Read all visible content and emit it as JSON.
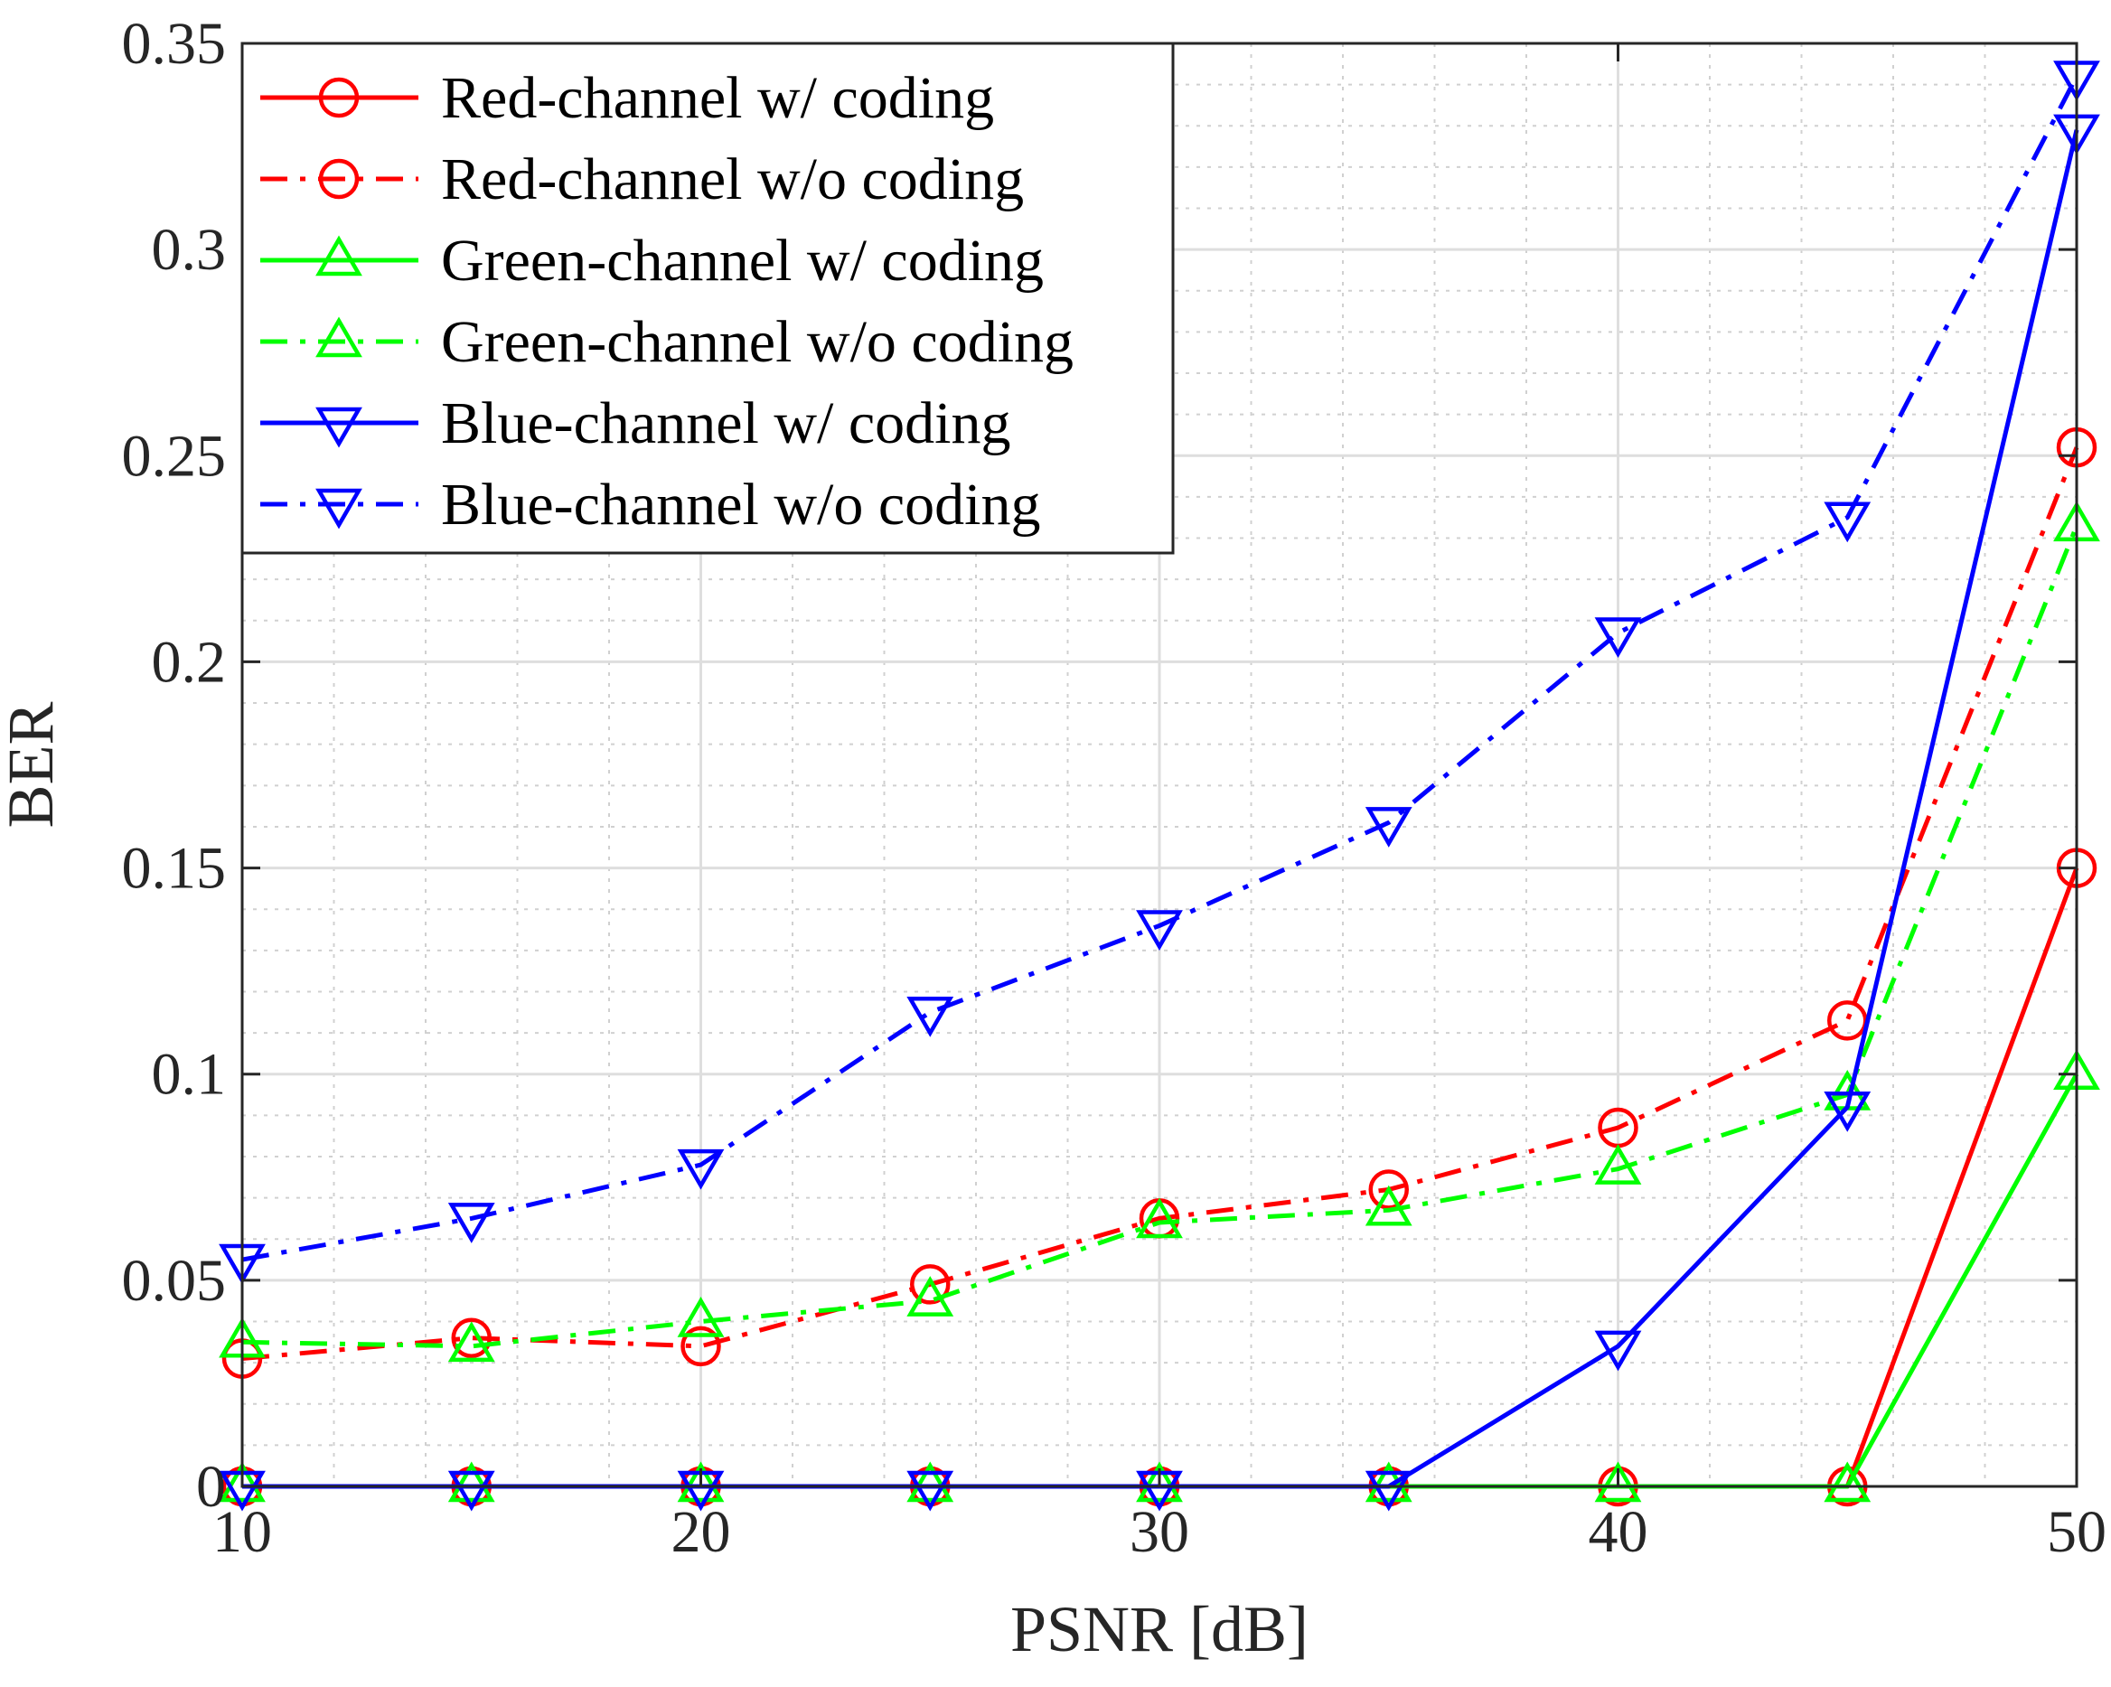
{
  "chart_data": {
    "type": "line",
    "title": "",
    "xlabel": "PSNR [dB]",
    "ylabel": "BER",
    "xlim": [
      10,
      50
    ],
    "ylim": [
      0,
      0.35
    ],
    "xticks": [
      10,
      20,
      30,
      40,
      50
    ],
    "xtick_labels": [
      "10",
      "20",
      "30",
      "40",
      "50"
    ],
    "yticks": [
      0,
      0.05,
      0.1,
      0.15,
      0.2,
      0.25,
      0.3,
      0.35
    ],
    "ytick_labels": [
      "0",
      "0.05",
      "0.1",
      "0.15",
      "0.2",
      "0.25",
      "0.3",
      "0.35"
    ],
    "grid": true,
    "minor_grid": true,
    "legend_position": "top-left",
    "x": [
      10,
      15,
      20,
      25,
      30,
      35,
      40,
      45,
      50
    ],
    "series": [
      {
        "name": "Red-channel w/ coding",
        "color": "#ff0000",
        "marker": "circle",
        "line": "solid",
        "values": [
          0,
          0,
          0,
          0,
          0,
          0,
          0,
          0,
          0.15
        ]
      },
      {
        "name": "Red-channel w/o coding",
        "color": "#ff0000",
        "marker": "circle",
        "line": "dashdot",
        "values": [
          0.031,
          0.036,
          0.034,
          0.049,
          0.065,
          0.072,
          0.087,
          0.113,
          0.252
        ]
      },
      {
        "name": "Green-channel w/ coding",
        "color": "#00ff00",
        "marker": "triangle-up",
        "line": "solid",
        "values": [
          0,
          0,
          0,
          0,
          0,
          0,
          0,
          0,
          0.1
        ]
      },
      {
        "name": "Green-channel w/o coding",
        "color": "#00ff00",
        "marker": "triangle-up",
        "line": "dashdot",
        "values": [
          0.035,
          0.034,
          0.04,
          0.045,
          0.064,
          0.067,
          0.077,
          0.095,
          0.233
        ]
      },
      {
        "name": "Blue-channel w/ coding",
        "color": "#0000ff",
        "marker": "triangle-down",
        "line": "solid",
        "values": [
          0,
          0,
          0,
          0,
          0,
          0,
          0.034,
          0.092,
          0.329
        ]
      },
      {
        "name": "Blue-channel w/o coding",
        "color": "#0000ff",
        "marker": "triangle-down",
        "line": "dashdot",
        "values": [
          0.055,
          0.065,
          0.078,
          0.115,
          0.136,
          0.161,
          0.207,
          0.235,
          0.342
        ]
      }
    ]
  }
}
